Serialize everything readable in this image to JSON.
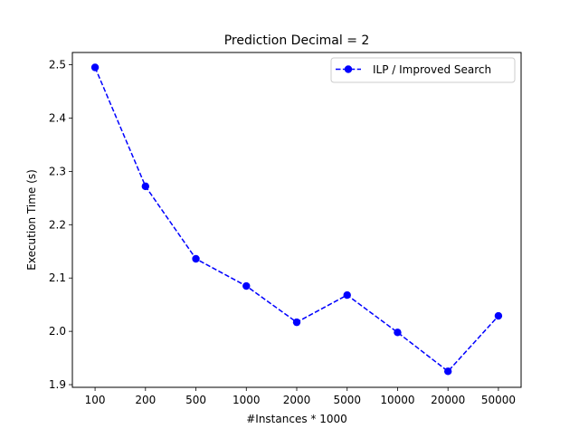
{
  "chart_data": {
    "type": "line",
    "title": "Prediction Decimal = 2",
    "xlabel": "#Instances * 1000",
    "ylabel": "Execution Time (s)",
    "categories": [
      "100",
      "200",
      "500",
      "1000",
      "2000",
      "5000",
      "10000",
      "20000",
      "50000"
    ],
    "series": [
      {
        "name": "ILP / Improved Search",
        "color": "#0000ff",
        "line_style": "dashed",
        "marker": "circle",
        "values": [
          2.495,
          2.272,
          2.136,
          2.085,
          2.017,
          2.068,
          1.998,
          1.925,
          2.029
        ]
      }
    ],
    "ylim": [
      1.895,
      2.523
    ],
    "yticks": [
      1.9,
      2.0,
      2.1,
      2.2,
      2.3,
      2.4,
      2.5
    ],
    "ytick_labels": [
      "1.9",
      "2.0",
      "2.1",
      "2.2",
      "2.3",
      "2.4",
      "2.5"
    ],
    "grid": false,
    "legend_position": "upper-right"
  }
}
